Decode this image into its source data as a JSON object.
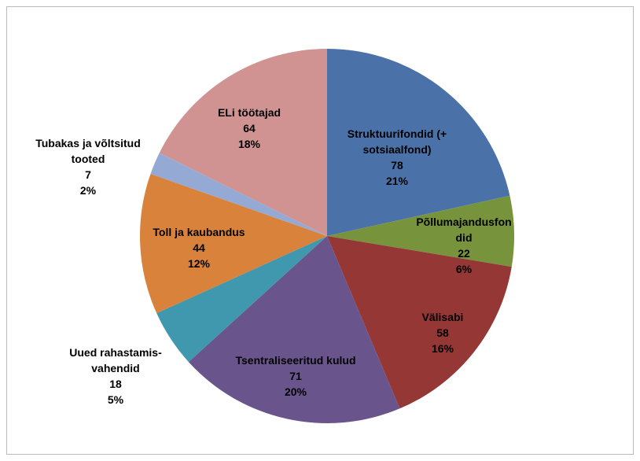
{
  "chart_data": {
    "type": "pie",
    "categories": [
      "Struktuurifondid (+ sotsiaalfond)",
      "Põllumajandusfondid",
      "Välisabi",
      "Tsentraliseeritud kulud",
      "Uued rahastamis-vahendid",
      "Toll ja kaubandus",
      "Tubakas ja võltsitud tooted",
      "ELi töötajad"
    ],
    "values": [
      78,
      22,
      58,
      71,
      18,
      44,
      7,
      64
    ],
    "value_labels": [
      "21%",
      "6%",
      "16%",
      "20%",
      "5%",
      "12%",
      "2%",
      "18%"
    ],
    "colors": [
      "#4a72a8",
      "#77933c",
      "#953735",
      "#6a548c",
      "#3f98ad",
      "#d9823b",
      "#94a9d4",
      "#d09392"
    ]
  }
}
